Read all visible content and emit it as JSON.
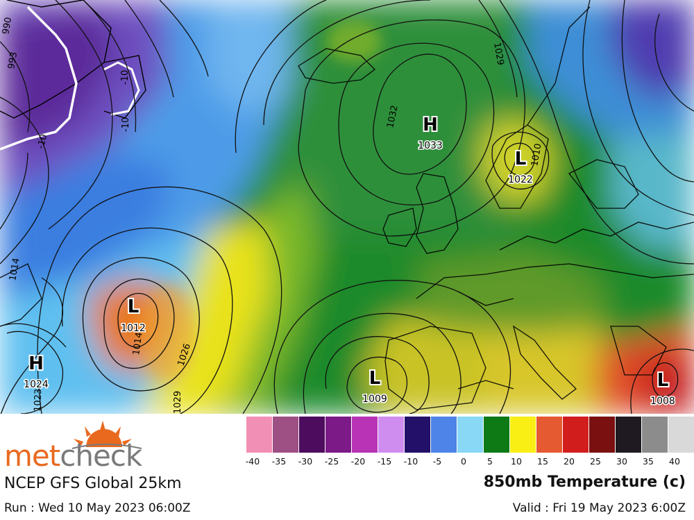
{
  "map": {
    "pressure_systems": [
      {
        "type": "H",
        "value": "1033"
      },
      {
        "type": "L",
        "value": "1022"
      },
      {
        "type": "L",
        "value": "1012"
      },
      {
        "type": "H",
        "value": "1024"
      },
      {
        "type": "L",
        "value": "1009"
      },
      {
        "type": "L",
        "value": "1008"
      }
    ],
    "isobar_labels": [
      "1029",
      "1032",
      "1026",
      "1014",
      "1014",
      "1023",
      "1029",
      "1010",
      "990",
      "993",
      "-10",
      "-10",
      "-10"
    ]
  },
  "legend": {
    "swatches": [
      {
        "color": "#f28fb4"
      },
      {
        "color": "#9e4f84"
      },
      {
        "color": "#4d0c5d"
      },
      {
        "color": "#7c1a87"
      },
      {
        "color": "#b833b6"
      },
      {
        "color": "#d08df0"
      },
      {
        "color": "#231069"
      },
      {
        "color": "#4e83e8"
      },
      {
        "color": "#88d8f6"
      },
      {
        "color": "#0d7a16"
      },
      {
        "color": "#f9ef15"
      },
      {
        "color": "#e55a30"
      },
      {
        "color": "#d21d1d"
      },
      {
        "color": "#7a1010"
      },
      {
        "color": "#1f1a22"
      },
      {
        "color": "#8d8c8c"
      },
      {
        "color": "#d9d9d9"
      }
    ],
    "ticks": [
      "-40",
      "-35",
      "-30",
      "-25",
      "-20",
      "-15",
      "-10",
      "-5",
      "0",
      "5",
      "10",
      "15",
      "20",
      "25",
      "30",
      "35",
      "40"
    ]
  },
  "footer": {
    "brand_part1": "met",
    "brand_part2": "check",
    "model": "NCEP GFS Global 25km",
    "run": "Run : Wed 10 May 2023 06:00Z",
    "product": "850mb Temperature (c)",
    "valid": "Valid : Fri 19 May 2023 6:00Z"
  },
  "colors": {
    "brand_orange": "#e9691f",
    "brand_grey": "#7a7a7a"
  }
}
